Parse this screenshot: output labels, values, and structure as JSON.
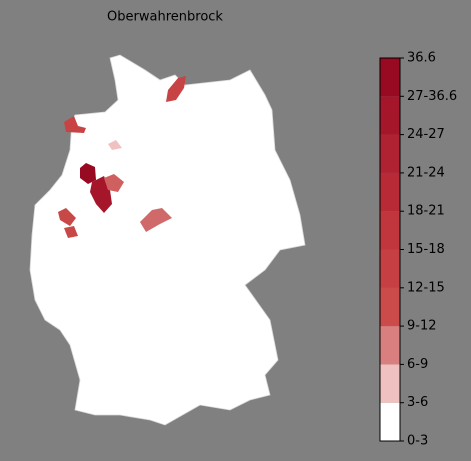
{
  "title": "Oberwahrenbrock",
  "colorbar": {
    "labels": [
      "0-3",
      "3-6",
      "6-9",
      "9-12",
      "12-15",
      "15-18",
      "18-21",
      "21-24",
      "24-27",
      "27-36.6",
      "36.6"
    ],
    "colors": [
      "#ffffff",
      "#efc1c1",
      "#da7f7f",
      "#cb4a4a",
      "#c53f43",
      "#c1353d",
      "#b92a37",
      "#b02131",
      "#a5162a",
      "#980a22"
    ]
  }
}
